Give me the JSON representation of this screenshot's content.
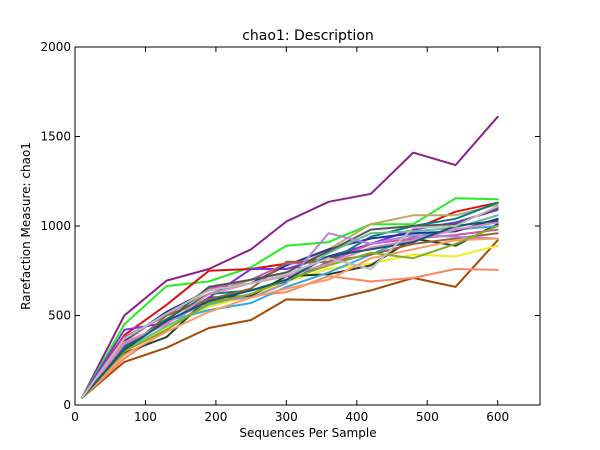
{
  "chart_data": {
    "type": "line",
    "title": "chao1: Description",
    "xlabel": "Sequences Per Sample",
    "ylabel": "Rarefaction Measure: chao1",
    "xlim": [
      0,
      660
    ],
    "ylim": [
      0,
      2000
    ],
    "x_ticks": [
      0,
      100,
      200,
      300,
      400,
      500,
      600
    ],
    "y_ticks": [
      0,
      500,
      1000,
      1500,
      2000
    ],
    "grid": false,
    "x": [
      10,
      70,
      130,
      190,
      250,
      300,
      360,
      420,
      480,
      540,
      600
    ],
    "series": [
      {
        "color": "#8b1f8b",
        "values": [
          40,
          500,
          695,
          760,
          870,
          1025,
          1135,
          1180,
          1410,
          1340,
          1610
        ]
      },
      {
        "color": "#22ee22",
        "values": [
          40,
          450,
          665,
          690,
          770,
          890,
          910,
          1010,
          1010,
          1155,
          1150
        ]
      },
      {
        "color": "#e01010",
        "values": [
          40,
          390,
          560,
          750,
          760,
          790,
          820,
          900,
          980,
          1080,
          1130
        ]
      },
      {
        "color": "#bba866",
        "values": [
          40,
          350,
          520,
          620,
          700,
          740,
          870,
          1010,
          1060,
          1060,
          1120
        ]
      },
      {
        "color": "#a54a05",
        "values": [
          40,
          240,
          320,
          430,
          475,
          590,
          585,
          640,
          710,
          660,
          920
        ]
      },
      {
        "color": "#f58a60",
        "values": [
          40,
          260,
          420,
          580,
          610,
          630,
          720,
          690,
          710,
          760,
          755
        ]
      },
      {
        "color": "#eeee22",
        "values": [
          40,
          300,
          430,
          550,
          610,
          690,
          760,
          790,
          840,
          830,
          890
        ]
      },
      {
        "color": "#224422",
        "values": [
          40,
          290,
          380,
          600,
          610,
          720,
          730,
          780,
          930,
          890,
          1010
        ]
      },
      {
        "color": "#7733ee",
        "values": [
          40,
          420,
          460,
          600,
          760,
          760,
          830,
          900,
          980,
          1020,
          1090
        ]
      },
      {
        "color": "#33aadd",
        "values": [
          40,
          330,
          470,
          530,
          570,
          660,
          740,
          840,
          940,
          980,
          1000
        ]
      },
      {
        "color": "#008080",
        "values": [
          40,
          320,
          480,
          620,
          640,
          690,
          800,
          940,
          1000,
          1040,
          1130
        ]
      },
      {
        "color": "#223399",
        "values": [
          40,
          360,
          520,
          640,
          680,
          780,
          870,
          930,
          960,
          970,
          1040
        ]
      },
      {
        "color": "#cc55aa",
        "values": [
          40,
          380,
          500,
          650,
          700,
          790,
          800,
          900,
          930,
          950,
          980
        ]
      },
      {
        "color": "#66bb99",
        "values": [
          40,
          310,
          440,
          560,
          620,
          700,
          850,
          960,
          970,
          990,
          1060
        ]
      },
      {
        "color": "#996633",
        "values": [
          40,
          300,
          500,
          590,
          650,
          800,
          800,
          840,
          900,
          930,
          960
        ]
      },
      {
        "color": "#555555",
        "values": [
          40,
          330,
          470,
          660,
          700,
          740,
          860,
          980,
          1000,
          1010,
          1100
        ]
      },
      {
        "color": "#aa88dd",
        "values": [
          40,
          340,
          460,
          580,
          600,
          680,
          960,
          900,
          950,
          940,
          930
        ]
      },
      {
        "color": "#ff9966",
        "values": [
          40,
          280,
          410,
          520,
          600,
          650,
          700,
          820,
          870,
          920,
          930
        ]
      },
      {
        "color": "#88aa22",
        "values": [
          40,
          300,
          420,
          570,
          620,
          700,
          780,
          850,
          820,
          900,
          1000
        ]
      },
      {
        "color": "#dd88bb",
        "values": [
          40,
          350,
          450,
          620,
          680,
          720,
          790,
          880,
          920,
          980,
          1020
        ]
      },
      {
        "color": "#115577",
        "values": [
          40,
          310,
          470,
          580,
          640,
          700,
          830,
          870,
          910,
          1000,
          1030
        ]
      },
      {
        "color": "#bbbbbb",
        "values": [
          40,
          370,
          510,
          640,
          680,
          730,
          820,
          760,
          990,
          1000,
          1110
        ]
      }
    ]
  }
}
